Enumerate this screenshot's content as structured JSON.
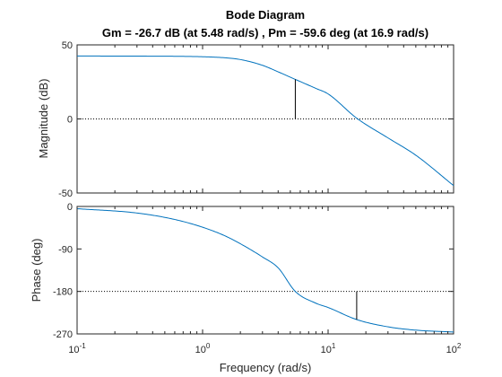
{
  "chart_data": {
    "type": "line",
    "title": "Bode Diagram",
    "subtitle": "Gm = -26.7 dB (at 5.48 rad/s) ,  Pm = -59.6 deg (at 16.9 rad/s)",
    "xlabel": "Frequency  (rad/s)",
    "x_scale": "log",
    "xlim": [
      0.1,
      100
    ],
    "x_ticks": [
      {
        "base": "10",
        "exp": "-1"
      },
      {
        "base": "10",
        "exp": "0"
      },
      {
        "base": "10",
        "exp": "1"
      },
      {
        "base": "10",
        "exp": "2"
      }
    ],
    "gain_margin_db": -26.7,
    "gain_margin_freq": 5.48,
    "phase_margin_deg": -59.6,
    "phase_margin_freq": 16.9,
    "magnitude": {
      "ylabel": "Magnitude (dB)",
      "ylim": [
        -50,
        50
      ],
      "y_ticks": [
        "50",
        "0",
        "-50"
      ],
      "y_tick_values": [
        50,
        0,
        -50
      ],
      "reference_value": 0,
      "series": [
        {
          "x": [
            0.1,
            0.3,
            0.6,
            1.0,
            1.5,
            2.0,
            3.0,
            4.0,
            5.48,
            8.0,
            10.0,
            16.9,
            30.0,
            50.0,
            100.0
          ],
          "y": [
            42.5,
            42.4,
            42.3,
            42.0,
            41.3,
            40.1,
            36.2,
            31.8,
            26.7,
            20.6,
            16.9,
            0.5,
            -12.8,
            -24.5,
            -45.0
          ]
        }
      ]
    },
    "phase": {
      "ylabel": "Phase (deg)",
      "ylim": [
        -270,
        0
      ],
      "y_ticks": [
        "0",
        "-90",
        "-180",
        "-270"
      ],
      "y_tick_values": [
        0,
        -90,
        -180,
        -270
      ],
      "reference_value": -180,
      "series": [
        {
          "x": [
            0.1,
            0.3,
            0.6,
            1.0,
            1.5,
            2.0,
            3.0,
            4.0,
            5.48,
            8.0,
            10.0,
            16.9,
            30.0,
            50.0,
            100.0
          ],
          "y": [
            -4.7,
            -13.9,
            -27.6,
            -44.0,
            -62.0,
            -79.0,
            -107.0,
            -130.0,
            -180.0,
            -205.0,
            -214.0,
            -239.6,
            -255.0,
            -262.0,
            -266.0
          ]
        }
      ]
    }
  }
}
